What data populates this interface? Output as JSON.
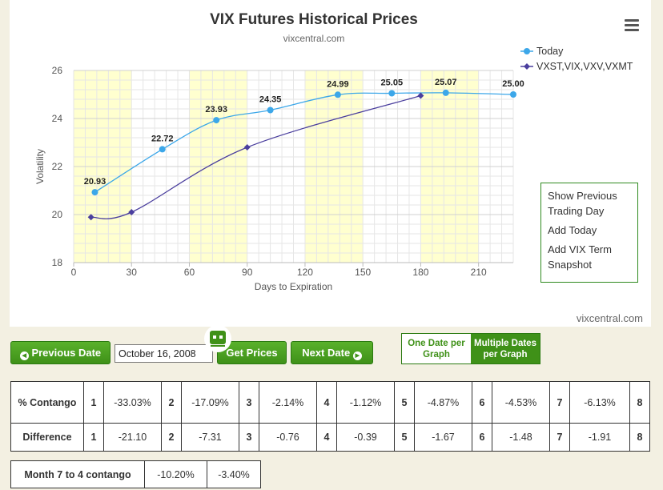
{
  "chart": {
    "title": "VIX Futures Historical Prices",
    "subtitle": "vixcentral.com",
    "credit": "vixcentral.com"
  },
  "menu": {
    "items": [
      "Show Previous Trading Day",
      "Add Today",
      "Add VIX Term Snapshot"
    ]
  },
  "controls": {
    "prev_label": "Previous Date",
    "date_value": "October 16, 2008",
    "get_prices_label": "Get Prices",
    "next_label": "Next Date",
    "one_date_label": "One Date per Graph",
    "multi_date_label": "Multiple Dates per Graph"
  },
  "table": {
    "rows": [
      {
        "label": "% Contango",
        "cells": [
          [
            "1",
            "-33.03%"
          ],
          [
            "2",
            "-17.09%"
          ],
          [
            "3",
            "-2.14%"
          ],
          [
            "4",
            "-1.12%"
          ],
          [
            "5",
            "-4.87%"
          ],
          [
            "6",
            "-4.53%"
          ],
          [
            "7",
            "-6.13%"
          ],
          [
            "8",
            ""
          ]
        ]
      },
      {
        "label": "Difference",
        "cells": [
          [
            "1",
            "-21.10"
          ],
          [
            "2",
            "-7.31"
          ],
          [
            "3",
            "-0.76"
          ],
          [
            "4",
            "-0.39"
          ],
          [
            "5",
            "-1.67"
          ],
          [
            "6",
            "-1.48"
          ],
          [
            "7",
            "-1.91"
          ],
          [
            "8",
            ""
          ]
        ]
      }
    ],
    "month_label": "Month 7 to 4 contango",
    "month_values": [
      "-10.20%",
      "-3.40%"
    ]
  },
  "colors": {
    "today": "#3ca7e9",
    "term": "#4b3f9e",
    "band": "#ffffcf",
    "accent": "#3f9118"
  },
  "chart_data": {
    "type": "line",
    "title": "VIX Futures Historical Prices",
    "subtitle": "vixcentral.com",
    "xlabel": "Days to Expiration",
    "ylabel": "Volatility",
    "xlim": [
      0,
      228
    ],
    "ylim": [
      18,
      26
    ],
    "x_ticks": [
      0,
      30,
      60,
      90,
      120,
      150,
      180,
      210
    ],
    "y_ticks": [
      18,
      20,
      22,
      24,
      26
    ],
    "bands": [
      [
        0,
        30
      ],
      [
        60,
        90
      ],
      [
        120,
        150
      ],
      [
        180,
        210
      ]
    ],
    "grid": true,
    "legend_position": "top-right",
    "series": [
      {
        "name": "Today",
        "x": [
          11,
          46,
          74,
          102,
          137,
          165,
          193,
          228
        ],
        "y": [
          20.93,
          22.72,
          23.93,
          24.35,
          24.99,
          25.05,
          25.07,
          25.0
        ],
        "labels": [
          "20.93",
          "22.72",
          "23.93",
          "24.35",
          "24.99",
          "25.05",
          "25.07",
          "25.00"
        ]
      },
      {
        "name": "VXST,VIX,VXV,VXMT",
        "x": [
          9,
          30,
          90,
          180
        ],
        "y": [
          19.89,
          20.1,
          22.8,
          24.95
        ]
      }
    ]
  }
}
